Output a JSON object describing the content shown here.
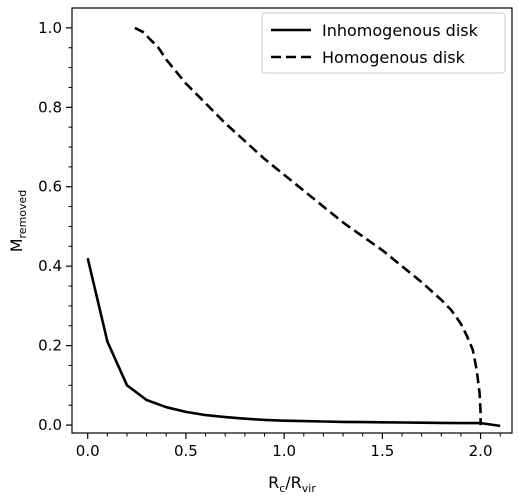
{
  "chart_data": {
    "type": "line",
    "xlabel": {
      "main": "R",
      "sub1": "c",
      "sep": "/R",
      "sub2": "vir"
    },
    "ylabel": {
      "main": "M",
      "sub": "removed"
    },
    "xlim": [
      -0.08,
      2.16
    ],
    "ylim": [
      -0.02,
      1.05
    ],
    "xticks": [
      0.0,
      0.5,
      1.0,
      1.5,
      2.0
    ],
    "xtick_labels": [
      "0.0",
      "0.5",
      "1.0",
      "1.5",
      "2.0"
    ],
    "xminor": [
      0.1,
      0.2,
      0.3,
      0.4,
      0.6,
      0.7,
      0.8,
      0.9,
      1.1,
      1.2,
      1.3,
      1.4,
      1.6,
      1.7,
      1.8,
      1.9,
      2.1
    ],
    "yticks": [
      0.0,
      0.2,
      0.4,
      0.6,
      0.8,
      1.0
    ],
    "ytick_labels": [
      "0.0",
      "0.2",
      "0.4",
      "0.6",
      "0.8",
      "1.0"
    ],
    "yminor": [
      0.05,
      0.1,
      0.15,
      0.25,
      0.3,
      0.35,
      0.45,
      0.5,
      0.55,
      0.65,
      0.7,
      0.75,
      0.85,
      0.9,
      0.95
    ],
    "legend_position": "top-right",
    "series": [
      {
        "name": "Inhomogenous disk",
        "style": "solid",
        "color": "#000000",
        "x": [
          0.0,
          0.1,
          0.2,
          0.3,
          0.4,
          0.5,
          0.6,
          0.7,
          0.8,
          0.9,
          1.0,
          1.1,
          1.2,
          1.3,
          1.4,
          1.5,
          1.6,
          1.7,
          1.8,
          1.9,
          2.0,
          2.1
        ],
        "y": [
          0.42,
          0.21,
          0.1,
          0.063,
          0.045,
          0.033,
          0.025,
          0.02,
          0.016,
          0.013,
          0.011,
          0.01,
          0.009,
          0.008,
          0.0075,
          0.007,
          0.0065,
          0.006,
          0.0055,
          0.005,
          0.0048,
          -0.002
        ]
      },
      {
        "name": "Homogenous disk",
        "style": "dashed",
        "color": "#000000",
        "x": [
          0.24,
          0.28,
          0.32,
          0.36,
          0.4,
          0.45,
          0.5,
          0.6,
          0.7,
          0.8,
          0.9,
          1.0,
          1.1,
          1.2,
          1.3,
          1.4,
          1.5,
          1.6,
          1.7,
          1.8,
          1.85,
          1.9,
          1.93,
          1.96,
          1.98,
          1.995,
          2.0,
          2.0
        ],
        "y": [
          1.0,
          0.99,
          0.97,
          0.95,
          0.92,
          0.89,
          0.86,
          0.81,
          0.76,
          0.715,
          0.67,
          0.63,
          0.59,
          0.55,
          0.51,
          0.475,
          0.44,
          0.4,
          0.36,
          0.315,
          0.29,
          0.255,
          0.225,
          0.19,
          0.14,
          0.08,
          0.03,
          0.0
        ]
      }
    ]
  }
}
